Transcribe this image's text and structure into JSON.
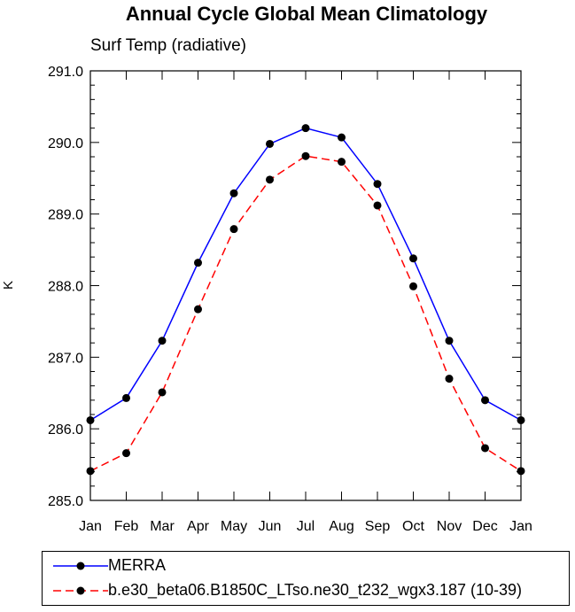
{
  "chart_data": {
    "type": "line",
    "title": "Annual Cycle Global Mean Climatology",
    "subtitle": "Surf Temp (radiative)",
    "xlabel": "",
    "ylabel": "K",
    "categories": [
      "Jan",
      "Feb",
      "Mar",
      "Apr",
      "May",
      "Jun",
      "Jul",
      "Aug",
      "Sep",
      "Oct",
      "Nov",
      "Dec",
      "Jan"
    ],
    "ylim": [
      285.0,
      291.0
    ],
    "yticks": [
      "285.0",
      "286.0",
      "287.0",
      "288.0",
      "289.0",
      "290.0",
      "291.0"
    ],
    "grid": false,
    "legend_position": "bottom",
    "series": [
      {
        "name": "MERRA",
        "color": "#0000ff",
        "dash": "solid",
        "marker": "filled-circle",
        "values": [
          286.12,
          286.43,
          287.23,
          288.32,
          289.29,
          289.98,
          290.2,
          290.07,
          289.42,
          288.38,
          287.23,
          286.4,
          286.12
        ]
      },
      {
        "name": "b.e30_beta06.B1850C_LTso.ne30_t232_wgx3.187 (10-39)",
        "color": "#ff0000",
        "dash": "dashed",
        "marker": "filled-circle",
        "values": [
          285.41,
          285.66,
          286.51,
          287.67,
          288.79,
          289.48,
          289.81,
          289.73,
          289.12,
          287.99,
          286.7,
          285.73,
          285.41
        ]
      }
    ]
  }
}
